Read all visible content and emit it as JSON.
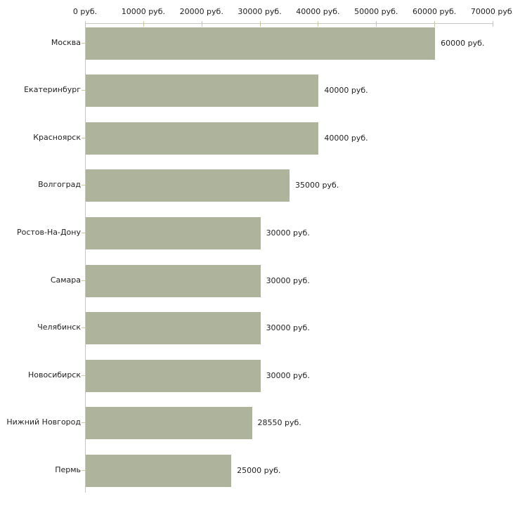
{
  "chart_data": {
    "type": "bar",
    "orientation": "horizontal",
    "title": "",
    "xlabel": "",
    "ylabel": "",
    "xlim": [
      0,
      70000
    ],
    "x_ticks": [
      0,
      10000,
      20000,
      30000,
      40000,
      50000,
      60000,
      70000
    ],
    "x_tick_labels": [
      "0 руб.",
      "10000 руб.",
      "20000 руб.",
      "30000 руб.",
      "40000 руб.",
      "50000 руб.",
      "60000 руб.",
      "70000 руб."
    ],
    "categories": [
      "Москва",
      "Екатеринбург",
      "Красноярск",
      "Волгоград",
      "Ростов-На-Дону",
      "Самара",
      "Челябинск",
      "Новосибирск",
      "Нижний Новгород",
      "Пермь"
    ],
    "values": [
      60000,
      40000,
      40000,
      35000,
      30000,
      30000,
      30000,
      30000,
      28550,
      25000
    ],
    "bar_labels": [
      "60000 руб.",
      "40000 руб.",
      "40000 руб.",
      "35000 руб.",
      "30000 руб.",
      "30000 руб.",
      "30000 руб.",
      "30000 руб.",
      "28550 руб.",
      "25000 руб."
    ],
    "grid": false,
    "legend": false,
    "colors": {
      "bar": "#adb49b",
      "axis": "#c6c6c6",
      "tick": "#c9c99c",
      "text": "#222222",
      "background": "#ffffff"
    }
  }
}
